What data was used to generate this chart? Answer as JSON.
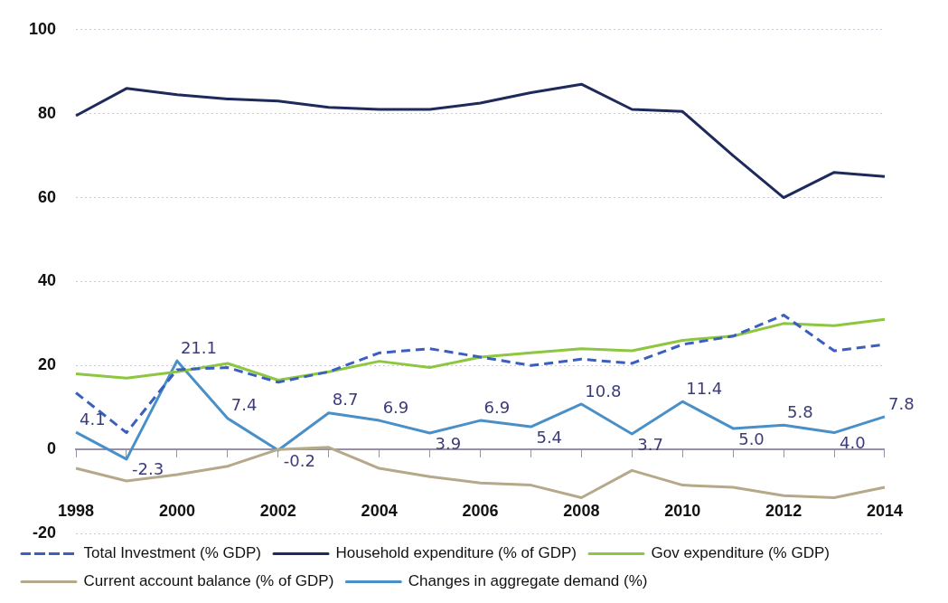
{
  "chart_data": {
    "type": "line",
    "categories": [
      "1998",
      null,
      "2000",
      null,
      "2002",
      null,
      "2004",
      null,
      "2006",
      null,
      "2008",
      null,
      "2010",
      null,
      "2012",
      null,
      "2014"
    ],
    "ylim": [
      -20,
      100
    ],
    "yticks": [
      -20,
      0,
      20,
      40,
      60,
      80,
      100
    ],
    "grid": "y",
    "legend": "bottom",
    "marker": "none",
    "series": [
      {
        "name": "Total Investment (% GDP)",
        "color": "#3a5fbf",
        "line_style": "dashed",
        "values": [
          13.5,
          4,
          19,
          19.5,
          16,
          18.5,
          23,
          24,
          22,
          20,
          21.5,
          20.5,
          25,
          27,
          32,
          23.5,
          25
        ]
      },
      {
        "name": "Household expenditure (% of GDP)",
        "color": "#1f2a5c",
        "values": [
          79.5,
          86,
          84.5,
          83.5,
          83,
          81.5,
          81,
          81,
          82.5,
          85,
          87,
          81,
          80.5,
          70,
          60,
          66,
          65
        ]
      },
      {
        "name": "Gov expenditure (% GDP)",
        "color": "#8dc63f",
        "values": [
          18,
          17,
          18.5,
          20.5,
          16.5,
          18.5,
          21,
          19.5,
          22,
          23,
          24,
          23.5,
          26,
          27,
          30,
          29.5,
          31
        ]
      },
      {
        "name": "Current account balance (% of GDP)",
        "color": "#b5a98a",
        "values": [
          -4.5,
          -7.5,
          -6,
          -4,
          0,
          0.5,
          -4.5,
          -6.5,
          -8,
          -8.5,
          -11.5,
          -5,
          -8.5,
          -9,
          -11,
          -11.5,
          -9
        ]
      },
      {
        "name": "Changes in aggregate demand (%)",
        "color": "#4a90c8",
        "values": [
          4.1,
          -2.3,
          21.1,
          7.4,
          -0.2,
          8.7,
          6.9,
          3.9,
          6.9,
          5.4,
          10.8,
          3.7,
          11.4,
          5.0,
          5.8,
          4.0,
          7.8
        ],
        "value_labels": [
          "4.1",
          "-2.3",
          "21.1",
          "7.4",
          "-0.2",
          "8.7",
          "6.9",
          "3.9",
          "6.9",
          "5.4",
          "10.8",
          "3.7",
          "11.4",
          "5.0",
          "5.8",
          "4.0",
          "7.8"
        ]
      }
    ]
  }
}
